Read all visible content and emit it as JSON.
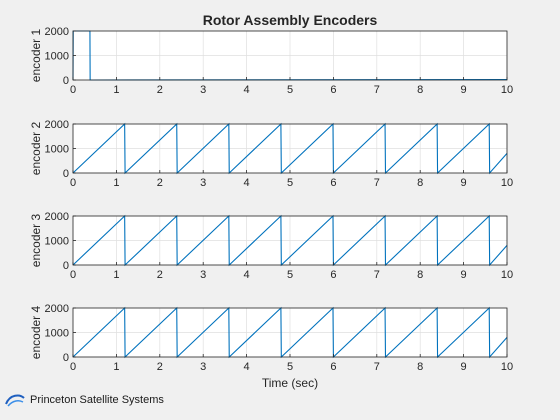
{
  "chart_data": {
    "type": "line",
    "title": "Rotor Assembly Encoders",
    "xlabel": "Time (sec)",
    "xlim": [
      0,
      10
    ],
    "x_ticks": [
      "0",
      "1",
      "2",
      "3",
      "4",
      "5",
      "6",
      "7",
      "8",
      "9",
      "10"
    ],
    "grid": true,
    "line_color": "#0072bd",
    "subplots": [
      {
        "ylabel": "encoder 1",
        "ylim": [
          0,
          2000
        ],
        "y_ticks": [
          "0",
          "1000",
          "2000"
        ],
        "x": [
          0,
          0.005,
          0.39,
          0.395,
          10
        ],
        "y": [
          0,
          2000,
          2000,
          0,
          20
        ]
      },
      {
        "ylabel": "encoder 2",
        "ylim": [
          0,
          2000
        ],
        "y_ticks": [
          "0",
          "1000",
          "2000"
        ],
        "x": [
          0,
          1.19,
          1.2,
          2.39,
          2.4,
          3.59,
          3.6,
          4.79,
          4.8,
          5.99,
          6.0,
          7.19,
          7.2,
          8.39,
          8.4,
          9.59,
          9.6,
          10
        ],
        "y": [
          0,
          2000,
          0,
          2000,
          0,
          2000,
          0,
          2000,
          0,
          2000,
          0,
          2000,
          0,
          2000,
          0,
          2000,
          0,
          800
        ]
      },
      {
        "ylabel": "encoder 3",
        "ylim": [
          0,
          2000
        ],
        "y_ticks": [
          "0",
          "1000",
          "2000"
        ],
        "x": [
          0,
          1.19,
          1.2,
          2.39,
          2.4,
          3.59,
          3.6,
          4.79,
          4.8,
          5.99,
          6.0,
          7.19,
          7.2,
          8.39,
          8.4,
          9.59,
          9.6,
          10
        ],
        "y": [
          0,
          2000,
          0,
          2000,
          0,
          2000,
          0,
          2000,
          0,
          2000,
          0,
          2000,
          0,
          2000,
          0,
          2000,
          0,
          800
        ]
      },
      {
        "ylabel": "encoder 4",
        "ylim": [
          0,
          2000
        ],
        "y_ticks": [
          "0",
          "1000",
          "2000"
        ],
        "x": [
          0,
          1.19,
          1.2,
          2.39,
          2.4,
          3.59,
          3.6,
          4.79,
          4.8,
          5.99,
          6.0,
          7.19,
          7.2,
          8.39,
          8.4,
          9.59,
          9.6,
          10
        ],
        "y": [
          0,
          2000,
          0,
          2000,
          0,
          2000,
          0,
          2000,
          0,
          2000,
          0,
          2000,
          0,
          2000,
          0,
          2000,
          0,
          800
        ]
      }
    ]
  },
  "footer": {
    "logo_icon": "satellite-orbit-logo-icon",
    "text": "Princeton Satellite Systems"
  }
}
